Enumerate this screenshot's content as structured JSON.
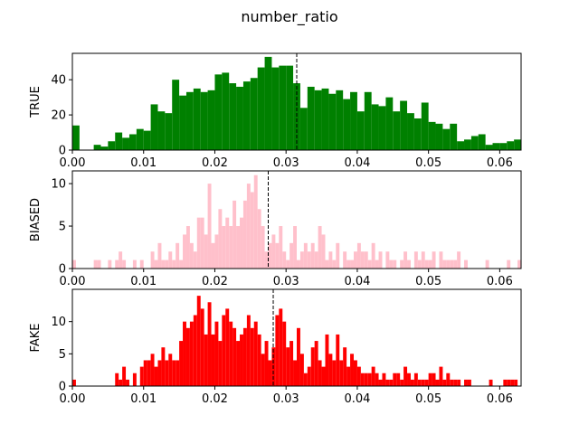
{
  "figure": {
    "title": "number_ratio"
  },
  "chart_data": [
    {
      "type": "bar",
      "ylabel": "TRUE",
      "color": "#008000",
      "xlim": [
        0,
        0.063
      ],
      "ylim": [
        0,
        55
      ],
      "xticks": [
        "0.00",
        "0.01",
        "0.02",
        "0.03",
        "0.04",
        "0.05",
        "0.06"
      ],
      "xtick_values": [
        0,
        0.01,
        0.02,
        0.03,
        0.04,
        0.05,
        0.06
      ],
      "yticks": [
        "0",
        "20",
        "40"
      ],
      "ytick_values": [
        0,
        20,
        40
      ],
      "bin_width": 0.001,
      "bins_x": [
        0.0,
        0.001,
        0.002,
        0.003,
        0.004,
        0.005,
        0.006,
        0.007,
        0.008,
        0.009,
        0.01,
        0.011,
        0.012,
        0.013,
        0.014,
        0.015,
        0.016,
        0.017,
        0.018,
        0.019,
        0.02,
        0.021,
        0.022,
        0.023,
        0.024,
        0.025,
        0.026,
        0.027,
        0.028,
        0.029,
        0.03,
        0.031,
        0.032,
        0.033,
        0.034,
        0.035,
        0.036,
        0.037,
        0.038,
        0.039,
        0.04,
        0.041,
        0.042,
        0.043,
        0.044,
        0.045,
        0.046,
        0.047,
        0.048,
        0.049,
        0.05,
        0.051,
        0.052,
        0.053,
        0.054,
        0.055,
        0.056,
        0.057,
        0.058,
        0.059,
        0.06,
        0.061,
        0.062
      ],
      "values": [
        14,
        0,
        0,
        3,
        2,
        5,
        10,
        7,
        9,
        12,
        11,
        26,
        22,
        21,
        40,
        31,
        33,
        35,
        33,
        34,
        43,
        44,
        38,
        36,
        39,
        41,
        47,
        53,
        47,
        48,
        48,
        38,
        24,
        36,
        34,
        35,
        32,
        34,
        29,
        33,
        22,
        33,
        26,
        25,
        30,
        22,
        28,
        21,
        18,
        27,
        16,
        15,
        12,
        15,
        5,
        6,
        8,
        9,
        3,
        4,
        4,
        5,
        6
      ],
      "vline": 0.0315
    },
    {
      "type": "bar",
      "ylabel": "BIASED",
      "color": "#ffc0cb",
      "xlim": [
        0,
        0.063
      ],
      "ylim": [
        0,
        11.5
      ],
      "xticks": [
        "0.00",
        "0.01",
        "0.02",
        "0.03",
        "0.04",
        "0.05",
        "0.06"
      ],
      "xtick_values": [
        0,
        0.01,
        0.02,
        0.03,
        0.04,
        0.05,
        0.06
      ],
      "yticks": [
        "0",
        "5",
        "10"
      ],
      "ytick_values": [
        0,
        5,
        10
      ],
      "bins": [
        [
          0.0,
          1
        ],
        [
          0.003,
          1
        ],
        [
          0.0035,
          1
        ],
        [
          0.005,
          1
        ],
        [
          0.006,
          1
        ],
        [
          0.0065,
          2
        ],
        [
          0.007,
          1
        ],
        [
          0.0085,
          1
        ],
        [
          0.0095,
          1
        ],
        [
          0.011,
          2
        ],
        [
          0.0115,
          1
        ],
        [
          0.012,
          3
        ],
        [
          0.0125,
          1
        ],
        [
          0.013,
          1
        ],
        [
          0.0135,
          2
        ],
        [
          0.014,
          1
        ],
        [
          0.0145,
          3
        ],
        [
          0.015,
          1
        ],
        [
          0.0155,
          4
        ],
        [
          0.016,
          5
        ],
        [
          0.0165,
          3
        ],
        [
          0.017,
          2
        ],
        [
          0.0175,
          6
        ],
        [
          0.018,
          6
        ],
        [
          0.0185,
          4
        ],
        [
          0.019,
          10
        ],
        [
          0.0195,
          3
        ],
        [
          0.02,
          4
        ],
        [
          0.0205,
          7
        ],
        [
          0.021,
          5
        ],
        [
          0.0215,
          6
        ],
        [
          0.022,
          5
        ],
        [
          0.0225,
          8
        ],
        [
          0.023,
          5
        ],
        [
          0.0235,
          6
        ],
        [
          0.024,
          8
        ],
        [
          0.0245,
          10
        ],
        [
          0.025,
          9
        ],
        [
          0.0255,
          11
        ],
        [
          0.026,
          7
        ],
        [
          0.0265,
          5
        ],
        [
          0.027,
          2
        ],
        [
          0.0275,
          3
        ],
        [
          0.028,
          4
        ],
        [
          0.0285,
          3
        ],
        [
          0.029,
          5
        ],
        [
          0.0295,
          2
        ],
        [
          0.03,
          1
        ],
        [
          0.0305,
          3
        ],
        [
          0.031,
          5
        ],
        [
          0.0315,
          1
        ],
        [
          0.032,
          2
        ],
        [
          0.0325,
          3
        ],
        [
          0.033,
          2
        ],
        [
          0.0335,
          3
        ],
        [
          0.034,
          2
        ],
        [
          0.0345,
          5
        ],
        [
          0.035,
          4
        ],
        [
          0.0355,
          1
        ],
        [
          0.036,
          2
        ],
        [
          0.0365,
          1
        ],
        [
          0.037,
          3
        ],
        [
          0.038,
          2
        ],
        [
          0.0385,
          1
        ],
        [
          0.039,
          1
        ],
        [
          0.0395,
          2
        ],
        [
          0.04,
          3
        ],
        [
          0.0405,
          2
        ],
        [
          0.041,
          2
        ],
        [
          0.0415,
          1
        ],
        [
          0.042,
          3
        ],
        [
          0.0425,
          1
        ],
        [
          0.043,
          2
        ],
        [
          0.044,
          2
        ],
        [
          0.0445,
          1
        ],
        [
          0.045,
          1
        ],
        [
          0.046,
          1
        ],
        [
          0.0465,
          2
        ],
        [
          0.047,
          1
        ],
        [
          0.048,
          2
        ],
        [
          0.0485,
          1
        ],
        [
          0.049,
          2
        ],
        [
          0.0495,
          1
        ],
        [
          0.05,
          1
        ],
        [
          0.0505,
          2
        ],
        [
          0.0515,
          2
        ],
        [
          0.052,
          1
        ],
        [
          0.0525,
          1
        ],
        [
          0.053,
          1
        ],
        [
          0.0535,
          1
        ],
        [
          0.054,
          2
        ],
        [
          0.055,
          1
        ],
        [
          0.058,
          1
        ],
        [
          0.061,
          1
        ],
        [
          0.0625,
          1
        ]
      ],
      "bin_width": 0.0005,
      "vline": 0.0275
    },
    {
      "type": "bar",
      "ylabel": "FAKE",
      "color": "#ff0000",
      "xlim": [
        0,
        0.063
      ],
      "ylim": [
        0,
        15
      ],
      "xticks": [
        "0.00",
        "0.01",
        "0.02",
        "0.03",
        "0.04",
        "0.05",
        "0.06"
      ],
      "xtick_values": [
        0,
        0.01,
        0.02,
        0.03,
        0.04,
        0.05,
        0.06
      ],
      "yticks": [
        "0",
        "5",
        "10"
      ],
      "ytick_values": [
        0,
        5,
        10
      ],
      "bin_width": 0.0005,
      "bins_x": [
        0.0,
        0.0005,
        0.001,
        0.0015,
        0.002,
        0.0025,
        0.003,
        0.0035,
        0.004,
        0.0045,
        0.005,
        0.0055,
        0.006,
        0.0065,
        0.007,
        0.0075,
        0.008,
        0.0085,
        0.009,
        0.0095,
        0.01,
        0.0105,
        0.011,
        0.0115,
        0.012,
        0.0125,
        0.013,
        0.0135,
        0.014,
        0.0145,
        0.015,
        0.0155,
        0.016,
        0.0165,
        0.017,
        0.0175,
        0.018,
        0.0185,
        0.019,
        0.0195,
        0.02,
        0.0205,
        0.021,
        0.0215,
        0.022,
        0.0225,
        0.023,
        0.0235,
        0.024,
        0.0245,
        0.025,
        0.0255,
        0.026,
        0.0265,
        0.027,
        0.0275,
        0.028,
        0.0285,
        0.029,
        0.0295,
        0.03,
        0.0305,
        0.031,
        0.0315,
        0.032,
        0.0325,
        0.033,
        0.0335,
        0.034,
        0.0345,
        0.035,
        0.0355,
        0.036,
        0.0365,
        0.037,
        0.0375,
        0.038,
        0.0385,
        0.039,
        0.0395,
        0.04,
        0.0405,
        0.041,
        0.0415,
        0.042,
        0.0425,
        0.043,
        0.0435,
        0.044,
        0.0445,
        0.045,
        0.0455,
        0.046,
        0.0465,
        0.047,
        0.0475,
        0.048,
        0.0485,
        0.049,
        0.0495,
        0.05,
        0.0505,
        0.051,
        0.0515,
        0.052,
        0.0525,
        0.053,
        0.0535,
        0.054,
        0.0545,
        0.055,
        0.0555,
        0.056,
        0.0565,
        0.057,
        0.0575,
        0.058,
        0.0585,
        0.059,
        0.0595,
        0.06,
        0.0605,
        0.061,
        0.0615,
        0.062,
        0.0625
      ],
      "values": [
        1,
        0,
        0,
        0,
        0,
        0,
        0,
        0,
        0,
        0,
        0,
        0,
        2,
        1,
        3,
        1,
        0,
        2,
        0,
        3,
        4,
        4,
        5,
        3,
        4,
        6,
        4,
        5,
        4,
        4,
        7,
        10,
        9,
        10,
        11,
        14,
        12,
        8,
        13,
        8,
        10,
        7,
        11,
        12,
        10,
        9,
        7,
        8,
        9,
        11,
        9,
        10,
        8,
        5,
        7,
        4,
        6,
        11,
        12,
        10,
        6,
        7,
        4,
        9,
        5,
        2,
        3,
        6,
        7,
        4,
        3,
        8,
        5,
        4,
        8,
        4,
        6,
        3,
        5,
        4,
        3,
        2,
        2,
        2,
        3,
        2,
        1,
        2,
        1,
        1,
        2,
        2,
        1,
        3,
        2,
        1,
        2,
        1,
        1,
        1,
        2,
        2,
        1,
        3,
        1,
        2,
        1,
        1,
        1,
        0,
        1,
        1,
        0,
        0,
        0,
        0,
        0,
        1,
        0,
        0,
        0,
        1,
        1,
        1,
        1,
        0
      ],
      "vline": 0.0282
    }
  ]
}
